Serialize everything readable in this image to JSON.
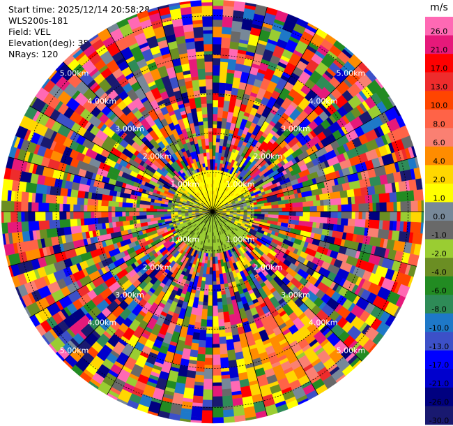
{
  "header": {
    "start_time": "Start time: 2025/12/14 20:58:28",
    "instrument": "WLS200s-181",
    "field": "Field: VEL",
    "elevation": "Elevation(deg): 35.00",
    "nrays": "NRays: 120"
  },
  "chart_data": {
    "type": "heatmap",
    "projection": "polar PPI",
    "field": "VEL",
    "units": "m/s",
    "range_labels": [
      "1.00km",
      "2.00km",
      "3.00km",
      "4.00km",
      "5.00km"
    ],
    "range_label_azimuths_deg": [
      45,
      135,
      225,
      315
    ],
    "max_range_km": 5.4,
    "n_rays": 120,
    "colorbar": {
      "label": "m/s",
      "ticks": [
        "26.0",
        "21.0",
        "17.0",
        "13.0",
        "10.0",
        "8.0",
        "6.0",
        "4.0",
        "2.0",
        "1.0",
        "0.0",
        "-1.0",
        "-2.0",
        "-4.0",
        "-6.0",
        "-8.0",
        "-10.0",
        "-13.0",
        "-17.0",
        "-21.0",
        "-26.0",
        "-30.0"
      ],
      "colors": [
        "#ff69b4",
        "#e6197a",
        "#ff0000",
        "#ee2c2c",
        "#ff4500",
        "#ff6347",
        "#fa8072",
        "#ff8c00",
        "#ffd700",
        "#ffff00",
        "#778899",
        "#696969",
        "#9acd32",
        "#6b8e23",
        "#228b22",
        "#2e8b57",
        "#1e78c8",
        "#3c50c8",
        "#0000ff",
        "#0000cd",
        "#000080",
        "#191970"
      ]
    },
    "near_field": "weak velocities (about -2 to 2 m/s) within ~1 km; noisy values beyond",
    "coherent_feature": "positive velocities (about 2 to 8 m/s) in south-southeast sector, 3-5 km"
  }
}
